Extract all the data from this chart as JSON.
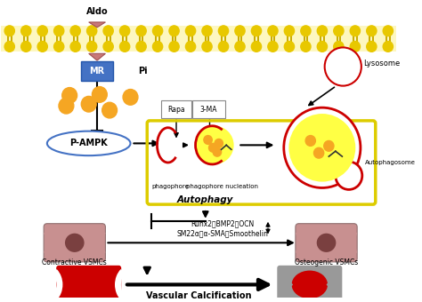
{
  "bg_color": "#ffffff",
  "MR_color": "#4472c4",
  "Pi_color": "#f5a623",
  "aldo_text": "Aldo",
  "pi_text": "Pi",
  "rapa_text": "Rapa",
  "ma_text": "3-MA",
  "phagophore_text": "phagophore",
  "phagophore_nuc_text": "phagophore nucleation",
  "autophagy_text": "Autophagy",
  "autophagosome_text": "Autophagosome",
  "lysosome_text": "Lysosome",
  "pampk_text": "P-AMPK",
  "runx_text": "Runx2、BMP2、OCN",
  "sm22_text": "SM22α、α-SMA、Smoothelin",
  "contractive_text": "Contractive VSMCs",
  "osteogenic_text": "Osteogenic VSMCs",
  "vascular_text": "Vascular Calcification",
  "mem_head_color": "#e8c800",
  "mem_tail_color": "#c8aa00",
  "mem_bg_color": "#fdf7c0",
  "red_color": "#cc0000",
  "blue_color": "#4472c4",
  "orange_color": "#f5a623",
  "yellow_fill": "#ffff44",
  "vsmc_fill": "#c89090",
  "vsmc_nucleus": "#7a4040",
  "vessel_red": "#cc0000",
  "vessel_gray": "#999999"
}
